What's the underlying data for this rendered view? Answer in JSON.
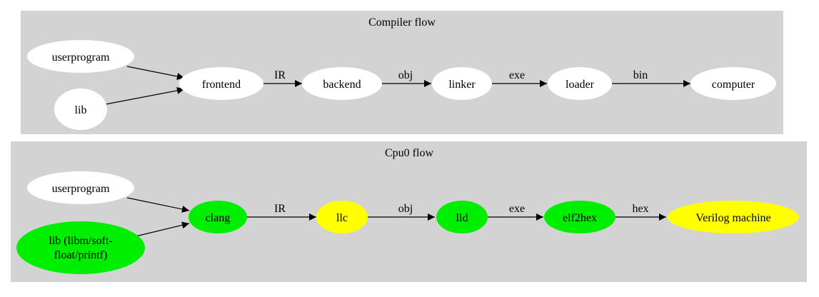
{
  "clusters": [
    {
      "title": "Compiler flow",
      "fill": "#d3d3d3",
      "nodes": [
        {
          "id": "userprogram",
          "label": [
            "userprogram"
          ],
          "color": "#ffffff"
        },
        {
          "id": "lib",
          "label": [
            "lib"
          ],
          "color": "#ffffff"
        },
        {
          "id": "frontend",
          "label": [
            "frontend"
          ],
          "color": "#ffffff"
        },
        {
          "id": "backend",
          "label": [
            "backend"
          ],
          "color": "#ffffff"
        },
        {
          "id": "linker",
          "label": [
            "linker"
          ],
          "color": "#ffffff"
        },
        {
          "id": "loader",
          "label": [
            "loader"
          ],
          "color": "#ffffff"
        },
        {
          "id": "computer",
          "label": [
            "computer"
          ],
          "color": "#ffffff"
        }
      ],
      "edges": [
        {
          "from": "userprogram",
          "to": "frontend",
          "label": ""
        },
        {
          "from": "lib",
          "to": "frontend",
          "label": ""
        },
        {
          "from": "frontend",
          "to": "backend",
          "label": "IR"
        },
        {
          "from": "backend",
          "to": "linker",
          "label": "obj"
        },
        {
          "from": "linker",
          "to": "loader",
          "label": "exe"
        },
        {
          "from": "loader",
          "to": "computer",
          "label": "bin"
        }
      ]
    },
    {
      "title": "Cpu0 flow",
      "fill": "#d3d3d3",
      "nodes": [
        {
          "id": "userprogram",
          "label": [
            "userprogram"
          ],
          "color": "#ffffff"
        },
        {
          "id": "lib",
          "label": [
            "lib (libm/soft-",
            "float/printf)"
          ],
          "color": "#00ee00"
        },
        {
          "id": "clang",
          "label": [
            "clang"
          ],
          "color": "#00ee00"
        },
        {
          "id": "llc",
          "label": [
            "llc"
          ],
          "color": "#ffff00"
        },
        {
          "id": "lld",
          "label": [
            "lld"
          ],
          "color": "#00ee00"
        },
        {
          "id": "elf2hex",
          "label": [
            "elf2hex"
          ],
          "color": "#00ee00"
        },
        {
          "id": "verilog",
          "label": [
            "Verilog machine"
          ],
          "color": "#ffff00"
        }
      ],
      "edges": [
        {
          "from": "userprogram",
          "to": "clang",
          "label": ""
        },
        {
          "from": "lib",
          "to": "clang",
          "label": ""
        },
        {
          "from": "clang",
          "to": "llc",
          "label": "IR"
        },
        {
          "from": "llc",
          "to": "lld",
          "label": "obj"
        },
        {
          "from": "lld",
          "to": "elf2hex",
          "label": "exe"
        },
        {
          "from": "elf2hex",
          "to": "verilog",
          "label": "hex"
        }
      ]
    }
  ]
}
